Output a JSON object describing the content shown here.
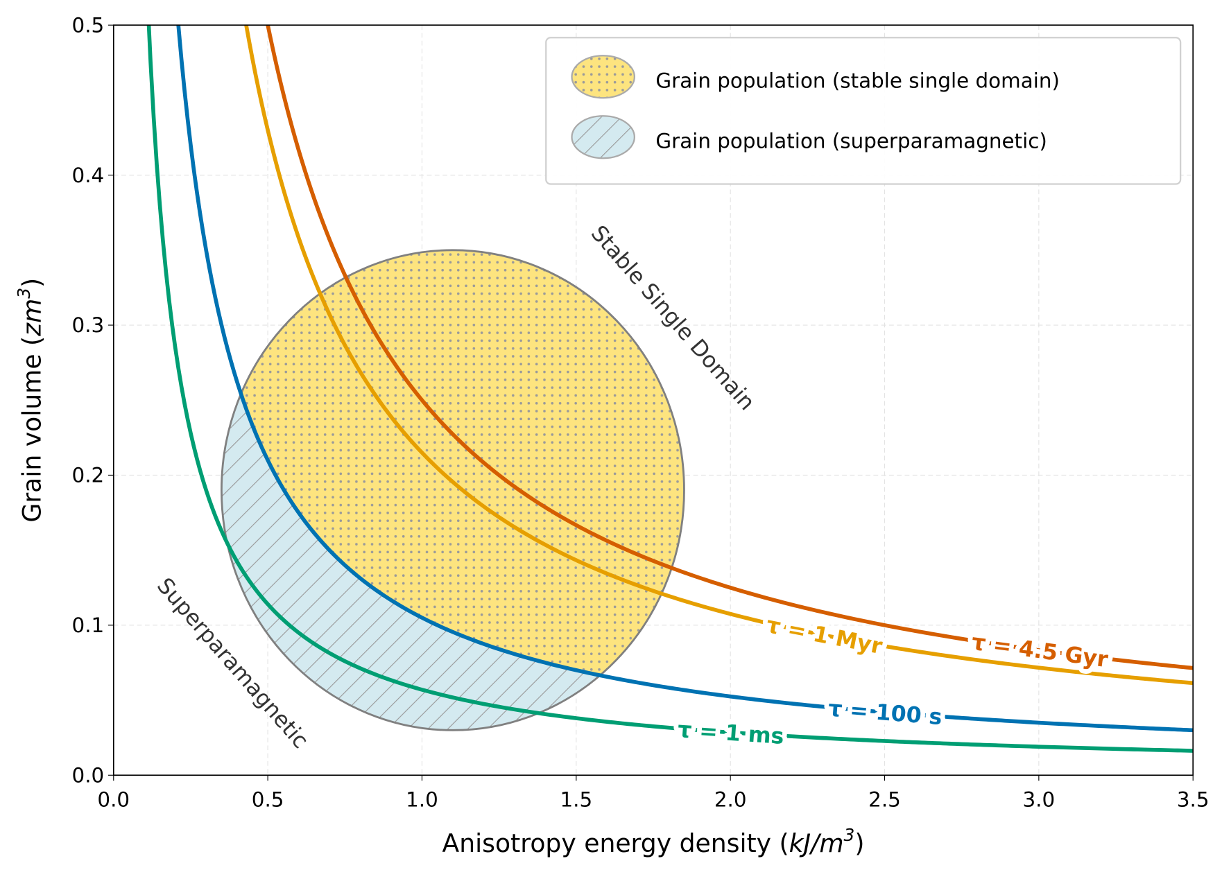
{
  "chart_data": {
    "type": "line",
    "xlabel": "Anisotropy energy density (kJ/m³)",
    "xlabel_parts": {
      "text": "Anisotropy energy density (",
      "unit_base": "kJ/m",
      "unit_exp": "3",
      "close": ")"
    },
    "ylabel_parts": {
      "text": "Grain volume (",
      "unit_base": "zm",
      "unit_exp": "3",
      "close": ")"
    },
    "xlim": [
      0.0,
      3.5
    ],
    "ylim": [
      0.0,
      0.5
    ],
    "xticks": [
      "0.0",
      "0.5",
      "1.0",
      "1.5",
      "2.0",
      "2.5",
      "3.0",
      "3.5"
    ],
    "yticks": [
      "0.0",
      "0.1",
      "0.2",
      "0.3",
      "0.4",
      "0.5"
    ],
    "grid": true,
    "series": [
      {
        "name": "τ = 1 ms",
        "formula": "V = 0.057 / K",
        "constant": 0.057,
        "color": "#009E73"
      },
      {
        "name": "τ = 100 s",
        "formula": "V = 0.105 / K",
        "constant": 0.105,
        "color": "#0072B2"
      },
      {
        "name": "τ = 1 Myr",
        "formula": "V = 0.215 / K",
        "constant": 0.215,
        "color": "#E69F00"
      },
      {
        "name": "τ = 4.5 Gyr",
        "formula": "V = 0.25 / K",
        "constant": 0.25,
        "color": "#D55E00"
      }
    ],
    "ellipse": {
      "center": [
        1.1,
        0.19
      ],
      "semi_axes": [
        0.75,
        0.16
      ],
      "edge_color": "#808080"
    },
    "legend": {
      "placement": "top-right",
      "entries": [
        {
          "label": "Grain population (stable single domain)",
          "fill": "#FDE47F",
          "pattern": "dots"
        },
        {
          "label": "Grain population (superparamagnetic)",
          "fill": "#D4EAF0",
          "pattern": "hatch"
        }
      ]
    },
    "annotations": [
      "Stable Single Domain",
      "Superparamagnetic"
    ]
  }
}
